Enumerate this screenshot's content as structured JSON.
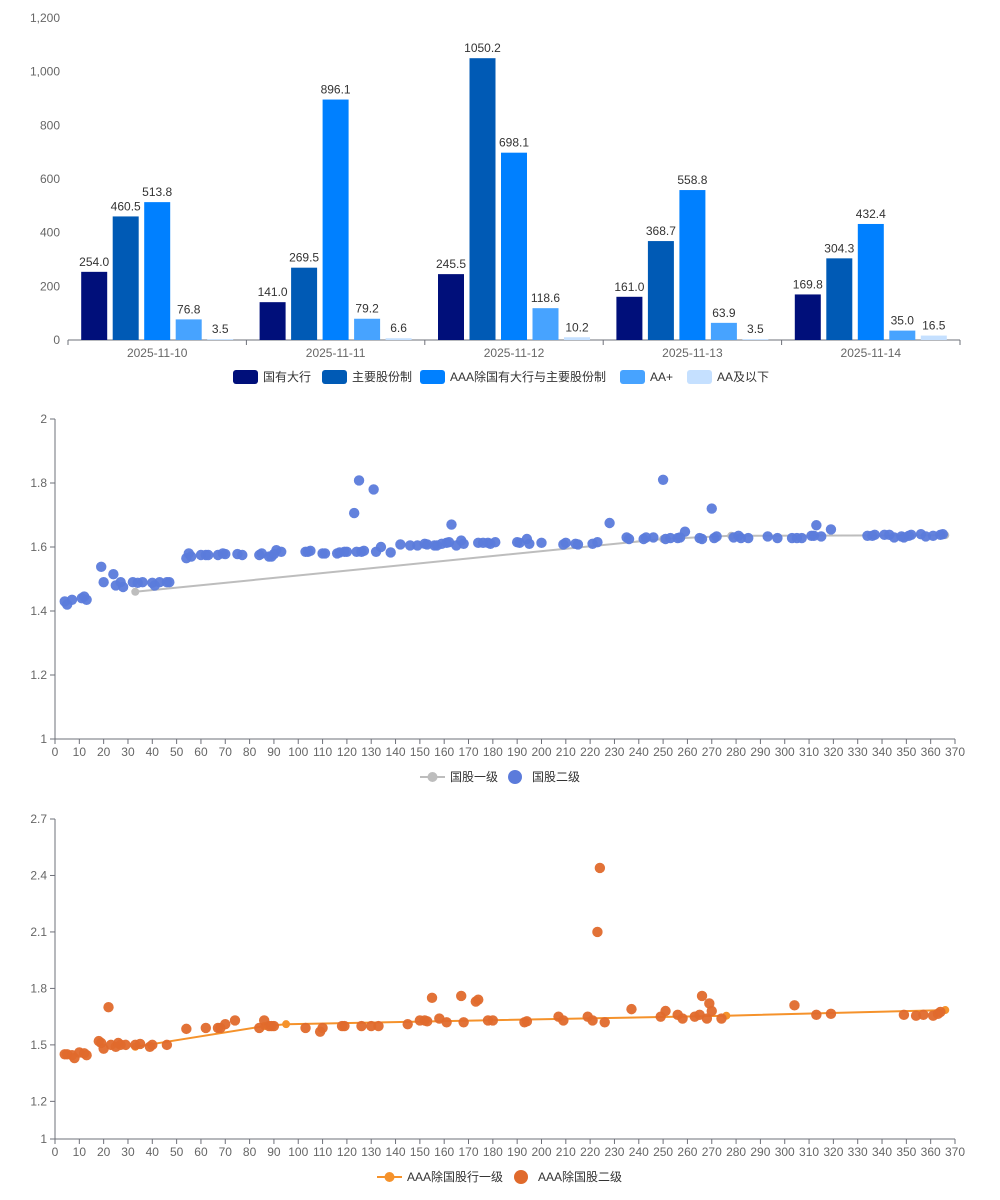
{
  "chart_data": [
    {
      "type": "bar",
      "categories": [
        "2025-11-10",
        "2025-11-11",
        "2025-11-12",
        "2025-11-13",
        "2025-11-14"
      ],
      "series": [
        {
          "name": "国有大行",
          "color": "#000f7a",
          "values": [
            254.0,
            141.0,
            245.5,
            161.0,
            169.8
          ],
          "labels": [
            "254.0",
            "141.0",
            "245.5",
            "161.0",
            "169.8"
          ]
        },
        {
          "name": "主要股份制",
          "color": "#005ab5",
          "values": [
            460.5,
            269.5,
            1050.2,
            368.7,
            304.3
          ],
          "labels": [
            "460.5",
            "269.5",
            "1050.2",
            "368.7",
            "304.3"
          ]
        },
        {
          "name": "AAA除国有大行与主要股份制",
          "color": "#0080ff",
          "values": [
            513.8,
            896.1,
            698.1,
            558.8,
            432.4
          ],
          "labels": [
            "513.8",
            "896.1",
            "698.1",
            "558.8",
            "432.4"
          ]
        },
        {
          "name": "AA+",
          "color": "#47a3ff",
          "values": [
            76.8,
            79.2,
            118.6,
            63.9,
            35.0
          ],
          "labels": [
            "76.8",
            "79.2",
            "118.6",
            "63.9",
            "35.0"
          ]
        },
        {
          "name": "AA及以下",
          "color": "#c5e0ff",
          "values": [
            3.5,
            6.6,
            10.2,
            3.5,
            16.5
          ],
          "labels": [
            "3.5",
            "6.6",
            "10.2",
            "3.5",
            "16.5"
          ]
        }
      ],
      "ylim": [
        0,
        1200
      ],
      "yticks": [
        "0",
        "200",
        "400",
        "600",
        "800",
        "1,000",
        "1,200"
      ],
      "legend": "bottom-center"
    },
    {
      "type": "scatter",
      "xlim": [
        0,
        370
      ],
      "ylim": [
        1,
        2
      ],
      "xticks": [
        "0",
        "10",
        "20",
        "30",
        "40",
        "50",
        "60",
        "70",
        "80",
        "90",
        "100",
        "110",
        "120",
        "130",
        "140",
        "150",
        "160",
        "170",
        "180",
        "190",
        "200",
        "210",
        "220",
        "230",
        "240",
        "250",
        "260",
        "270",
        "280",
        "290",
        "300",
        "310",
        "320",
        "330",
        "340",
        "350",
        "360",
        "370"
      ],
      "yticks": [
        "1",
        "1.2",
        "1.4",
        "1.6",
        "1.8",
        "2"
      ],
      "legend": "bottom-center",
      "series": [
        {
          "name": "国股一级",
          "kind": "line",
          "color": "#bdbdbd",
          "points": [
            [
              33,
              1.46
            ],
            [
              250,
              1.625
            ],
            [
              278,
              1.635
            ],
            [
              366,
              1.637
            ]
          ]
        },
        {
          "name": "国股二级",
          "kind": "scatter",
          "color": "#5b7bdb",
          "points": [
            [
              4,
              1.43
            ],
            [
              5,
              1.42
            ],
            [
              7,
              1.435
            ],
            [
              11,
              1.44
            ],
            [
              12,
              1.445
            ],
            [
              13,
              1.435
            ],
            [
              19,
              1.538
            ],
            [
              20,
              1.49
            ],
            [
              24,
              1.515
            ],
            [
              25,
              1.48
            ],
            [
              27,
              1.49
            ],
            [
              28,
              1.475
            ],
            [
              32,
              1.49
            ],
            [
              34,
              1.488
            ],
            [
              36,
              1.49
            ],
            [
              40,
              1.488
            ],
            [
              41,
              1.48
            ],
            [
              43,
              1.49
            ],
            [
              46,
              1.49
            ],
            [
              47,
              1.49
            ],
            [
              54,
              1.565
            ],
            [
              55,
              1.58
            ],
            [
              56,
              1.57
            ],
            [
              60,
              1.575
            ],
            [
              62,
              1.575
            ],
            [
              63,
              1.575
            ],
            [
              67,
              1.575
            ],
            [
              69,
              1.58
            ],
            [
              70,
              1.578
            ],
            [
              75,
              1.578
            ],
            [
              77,
              1.575
            ],
            [
              84,
              1.575
            ],
            [
              85,
              1.58
            ],
            [
              88,
              1.57
            ],
            [
              89,
              1.57
            ],
            [
              90,
              1.578
            ],
            [
              91,
              1.59
            ],
            [
              93,
              1.585
            ],
            [
              103,
              1.585
            ],
            [
              104,
              1.585
            ],
            [
              105,
              1.588
            ],
            [
              110,
              1.58
            ],
            [
              111,
              1.58
            ],
            [
              116,
              1.58
            ],
            [
              117,
              1.583
            ],
            [
              119,
              1.585
            ],
            [
              120,
              1.585
            ],
            [
              123,
              1.706
            ],
            [
              124,
              1.585
            ],
            [
              125,
              1.808
            ],
            [
              126,
              1.585
            ],
            [
              127,
              1.588
            ],
            [
              131,
              1.78
            ],
            [
              132,
              1.585
            ],
            [
              134,
              1.6
            ],
            [
              138,
              1.583
            ],
            [
              142,
              1.608
            ],
            [
              146,
              1.605
            ],
            [
              149,
              1.605
            ],
            [
              152,
              1.61
            ],
            [
              153,
              1.608
            ],
            [
              156,
              1.605
            ],
            [
              157,
              1.605
            ],
            [
              159,
              1.61
            ],
            [
              161,
              1.613
            ],
            [
              162,
              1.615
            ],
            [
              163,
              1.67
            ],
            [
              165,
              1.605
            ],
            [
              167,
              1.62
            ],
            [
              168,
              1.61
            ],
            [
              174,
              1.613
            ],
            [
              176,
              1.613
            ],
            [
              178,
              1.613
            ],
            [
              179,
              1.61
            ],
            [
              181,
              1.615
            ],
            [
              190,
              1.615
            ],
            [
              191,
              1.613
            ],
            [
              194,
              1.625
            ],
            [
              195,
              1.61
            ],
            [
              200,
              1.613
            ],
            [
              209,
              1.608
            ],
            [
              210,
              1.613
            ],
            [
              214,
              1.61
            ],
            [
              215,
              1.608
            ],
            [
              221,
              1.61
            ],
            [
              223,
              1.615
            ],
            [
              228,
              1.675
            ],
            [
              235,
              1.63
            ],
            [
              236,
              1.625
            ],
            [
              242,
              1.625
            ],
            [
              243,
              1.63
            ],
            [
              246,
              1.63
            ],
            [
              250,
              1.81
            ],
            [
              251,
              1.625
            ],
            [
              253,
              1.628
            ],
            [
              256,
              1.628
            ],
            [
              257,
              1.63
            ],
            [
              259,
              1.648
            ],
            [
              265,
              1.628
            ],
            [
              266,
              1.625
            ],
            [
              270,
              1.72
            ],
            [
              271,
              1.628
            ],
            [
              272,
              1.633
            ],
            [
              279,
              1.63
            ],
            [
              281,
              1.635
            ],
            [
              282,
              1.628
            ],
            [
              285,
              1.628
            ],
            [
              293,
              1.633
            ],
            [
              297,
              1.628
            ],
            [
              303,
              1.628
            ],
            [
              305,
              1.628
            ],
            [
              307,
              1.628
            ],
            [
              311,
              1.635
            ],
            [
              312,
              1.635
            ],
            [
              313,
              1.668
            ],
            [
              315,
              1.633
            ],
            [
              319,
              1.655
            ],
            [
              334,
              1.635
            ],
            [
              336,
              1.635
            ],
            [
              337,
              1.638
            ],
            [
              341,
              1.638
            ],
            [
              343,
              1.638
            ],
            [
              345,
              1.63
            ],
            [
              348,
              1.633
            ],
            [
              349,
              1.63
            ],
            [
              351,
              1.635
            ],
            [
              352,
              1.638
            ],
            [
              356,
              1.64
            ],
            [
              358,
              1.633
            ],
            [
              361,
              1.635
            ],
            [
              364,
              1.638
            ],
            [
              365,
              1.64
            ]
          ]
        }
      ],
      "legend_entries": [
        "国股一级",
        "国股二级"
      ]
    },
    {
      "type": "scatter",
      "xlim": [
        0,
        370
      ],
      "ylim": [
        1,
        2.7
      ],
      "xticks": [
        "0",
        "10",
        "20",
        "30",
        "40",
        "50",
        "60",
        "70",
        "80",
        "90",
        "100",
        "110",
        "120",
        "130",
        "140",
        "150",
        "160",
        "170",
        "180",
        "190",
        "200",
        "210",
        "220",
        "230",
        "240",
        "250",
        "260",
        "270",
        "280",
        "290",
        "300",
        "310",
        "320",
        "330",
        "340",
        "350",
        "360",
        "370"
      ],
      "yticks": [
        "1",
        "1.2",
        "1.5",
        "1.8",
        "2.1",
        "2.4",
        "2.7"
      ],
      "legend": "bottom-center",
      "series": [
        {
          "name": "AAA除国股行一级",
          "kind": "line",
          "color": "#f5922b",
          "points": [
            [
              33,
              1.49
            ],
            [
              86,
              1.6
            ],
            [
              95,
              1.61
            ],
            [
              276,
              1.655
            ],
            [
              366,
              1.685
            ]
          ]
        },
        {
          "name": "AAA除国股二级",
          "kind": "scatter",
          "color": "#e06a2c",
          "points": [
            [
              4,
              1.45
            ],
            [
              5,
              1.45
            ],
            [
              7,
              1.445
            ],
            [
              8,
              1.43
            ],
            [
              10,
              1.46
            ],
            [
              12,
              1.455
            ],
            [
              13,
              1.445
            ],
            [
              18,
              1.52
            ],
            [
              19,
              1.51
            ],
            [
              20,
              1.48
            ],
            [
              22,
              1.7
            ],
            [
              23,
              1.5
            ],
            [
              25,
              1.49
            ],
            [
              26,
              1.51
            ],
            [
              27,
              1.5
            ],
            [
              29,
              1.5
            ],
            [
              33,
              1.5
            ],
            [
              35,
              1.505
            ],
            [
              39,
              1.49
            ],
            [
              40,
              1.5
            ],
            [
              46,
              1.5
            ],
            [
              54,
              1.585
            ],
            [
              62,
              1.59
            ],
            [
              67,
              1.59
            ],
            [
              68,
              1.59
            ],
            [
              70,
              1.61
            ],
            [
              74,
              1.63
            ],
            [
              84,
              1.59
            ],
            [
              86,
              1.63
            ],
            [
              88,
              1.6
            ],
            [
              89,
              1.6
            ],
            [
              90,
              1.6
            ],
            [
              103,
              1.59
            ],
            [
              109,
              1.57
            ],
            [
              110,
              1.59
            ],
            [
              118,
              1.6
            ],
            [
              119,
              1.6
            ],
            [
              126,
              1.6
            ],
            [
              130,
              1.6
            ],
            [
              133,
              1.6
            ],
            [
              145,
              1.61
            ],
            [
              150,
              1.63
            ],
            [
              152,
              1.63
            ],
            [
              153,
              1.625
            ],
            [
              155,
              1.75
            ],
            [
              158,
              1.64
            ],
            [
              161,
              1.62
            ],
            [
              167,
              1.76
            ],
            [
              168,
              1.62
            ],
            [
              173,
              1.73
            ],
            [
              174,
              1.74
            ],
            [
              178,
              1.63
            ],
            [
              180,
              1.63
            ],
            [
              193,
              1.62
            ],
            [
              194,
              1.625
            ],
            [
              207,
              1.65
            ],
            [
              209,
              1.63
            ],
            [
              219,
              1.65
            ],
            [
              221,
              1.63
            ],
            [
              223,
              2.1
            ],
            [
              224,
              2.44
            ],
            [
              226,
              1.62
            ],
            [
              237,
              1.69
            ],
            [
              249,
              1.65
            ],
            [
              251,
              1.68
            ],
            [
              256,
              1.66
            ],
            [
              258,
              1.64
            ],
            [
              263,
              1.65
            ],
            [
              265,
              1.66
            ],
            [
              266,
              1.76
            ],
            [
              268,
              1.64
            ],
            [
              269,
              1.72
            ],
            [
              270,
              1.68
            ],
            [
              274,
              1.64
            ],
            [
              304,
              1.71
            ],
            [
              313,
              1.66
            ],
            [
              319,
              1.665
            ],
            [
              349,
              1.66
            ],
            [
              354,
              1.655
            ],
            [
              357,
              1.66
            ],
            [
              361,
              1.655
            ],
            [
              363,
              1.665
            ],
            [
              364,
              1.675
            ]
          ]
        }
      ],
      "legend_entries": [
        "AAA除国股行一级",
        "AAA除国股二级"
      ]
    }
  ]
}
